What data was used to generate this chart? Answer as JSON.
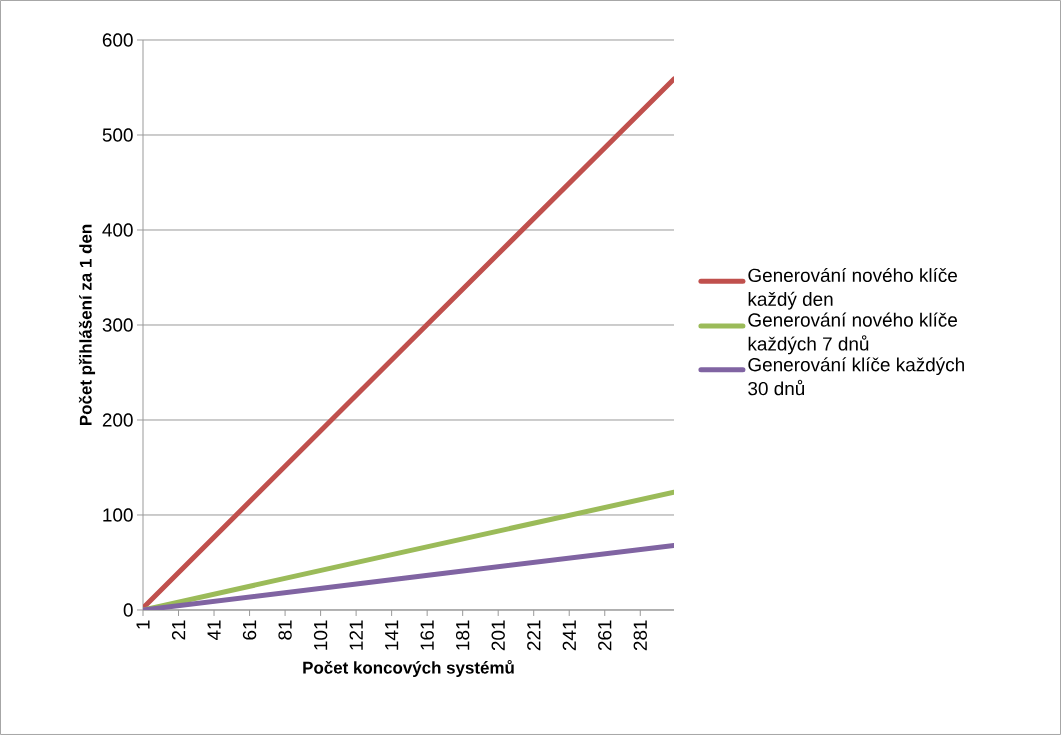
{
  "chart_data": {
    "type": "line",
    "xlabel": "Počet koncových systémů",
    "ylabel": "Počet přihlášení za 1 den",
    "xlim": [
      1,
      300
    ],
    "xticks": [
      1,
      21,
      41,
      61,
      81,
      101,
      121,
      141,
      161,
      181,
      201,
      221,
      241,
      261,
      281
    ],
    "ylim": [
      0,
      600
    ],
    "yticks": [
      0,
      100,
      200,
      300,
      400,
      500,
      600
    ],
    "grid": "y",
    "legend": "right",
    "series": [
      {
        "name": "Generování nového klíče každý den",
        "color": "#c0504d",
        "x": [
          1,
          150,
          300
        ],
        "values": [
          2,
          280,
          559
        ]
      },
      {
        "name": "Generování nového klíče každých 7 dnů",
        "color": "#9bbb59",
        "x": [
          1,
          150,
          300
        ],
        "values": [
          0,
          62,
          124
        ]
      },
      {
        "name": "Generování klíče každých 30 dnů",
        "color": "#8064a2",
        "x": [
          1,
          150,
          300
        ],
        "values": [
          0,
          34,
          68
        ]
      }
    ]
  }
}
